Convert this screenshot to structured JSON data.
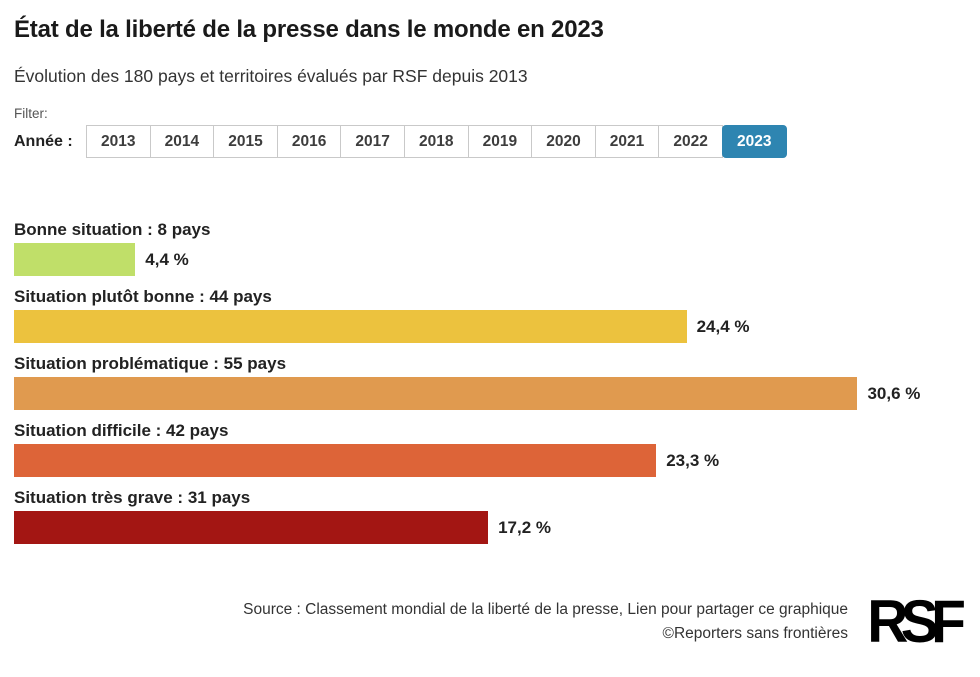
{
  "header": {
    "title": "État de la liberté de la presse dans le monde en 2023",
    "subtitle": "Évolution des 180 pays et territoires évalués par RSF depuis 2013"
  },
  "filter": {
    "label": "Filter:",
    "year_label": "Année :",
    "years": [
      "2013",
      "2014",
      "2015",
      "2016",
      "2017",
      "2018",
      "2019",
      "2020",
      "2021",
      "2022",
      "2023"
    ],
    "selected_year": "2023",
    "accent_color": "#2e85b1"
  },
  "chart_data": {
    "type": "bar",
    "orientation": "horizontal",
    "title": "État de la liberté de la presse dans le monde en 2023",
    "subtitle": "Évolution des 180 pays et territoires évalués par RSF depuis 2013",
    "categories": [
      "Bonne situation",
      "Situation plutôt bonne",
      "Situation problématique",
      "Situation difficile",
      "Situation très grave"
    ],
    "values": [
      4.4,
      24.4,
      30.6,
      23.3,
      17.2
    ],
    "country_counts": [
      8,
      44,
      55,
      42,
      31
    ],
    "total_countries": 180,
    "unit": "%",
    "xlim": [
      0,
      34.5
    ],
    "grid": false,
    "legend": false,
    "rows": [
      {
        "label": "Bonne situation : 8 pays",
        "value_pct": 4.4,
        "value_label": "4,4 %",
        "color": "#c0df69"
      },
      {
        "label": "Situation plutôt bonne : 44 pays",
        "value_pct": 24.4,
        "value_label": "24,4 %",
        "color": "#ecc23e"
      },
      {
        "label": "Situation problématique : 55 pays",
        "value_pct": 30.6,
        "value_label": "30,6 %",
        "color": "#e09a4f"
      },
      {
        "label": "Situation difficile : 42 pays",
        "value_pct": 23.3,
        "value_label": "23,3 %",
        "color": "#dd6438"
      },
      {
        "label": "Situation très grave : 31 pays",
        "value_pct": 17.2,
        "value_label": "17,2 %",
        "color": "#a31613"
      }
    ]
  },
  "footer": {
    "source_text": "Source : Classement mondial de la liberté de la presse, ",
    "share_link_text": "Lien pour partager ce graphique",
    "copyright": "©Reporters sans frontières",
    "logo_text": "RSF"
  }
}
